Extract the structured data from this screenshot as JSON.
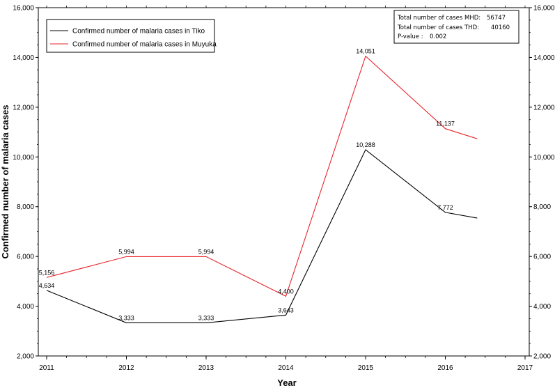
{
  "chart_data": {
    "type": "line",
    "xlabel": "Year",
    "ylabel": "Confirmed number of malaria cases",
    "xlim": [
      2011,
      2017
    ],
    "ylim": [
      2000,
      16000
    ],
    "x_ticks": [
      "2011",
      "2012",
      "2013",
      "2014",
      "2015",
      "2016",
      "2017"
    ],
    "y_ticks": [
      "2,000",
      "4,000",
      "6,000",
      "8,000",
      "10,000",
      "12,000",
      "14,000",
      "16,000"
    ],
    "right_axis_mirrored": true,
    "legend_position": "top-left",
    "series": [
      {
        "name": "Confirmed number of malaria cases in Tiko",
        "color": "#000000",
        "x": [
          2011,
          2012,
          2013,
          2014,
          2015,
          2016,
          2016.4
        ],
        "y": [
          4634,
          3333,
          3333,
          3643,
          10288,
          7772,
          7540
        ],
        "labels": [
          "4,634",
          "3,333",
          "3,333",
          "3,643",
          "10,288",
          "7,772",
          ""
        ]
      },
      {
        "name": "Confirmed number of malaria cases in Muyuka",
        "color": "#e8262d",
        "x": [
          2011,
          2012,
          2013,
          2014,
          2015,
          2016,
          2016.4
        ],
        "y": [
          5156,
          5994,
          5994,
          4400,
          14051,
          11137,
          10730
        ],
        "labels": [
          "5,156",
          "5,994",
          "5,994",
          "4,400",
          "14,051",
          "11,137",
          ""
        ]
      }
    ]
  },
  "stats": {
    "mhd_label": "Total  number of cases MHD:",
    "mhd_value": "56747",
    "thd_label": "Total  number of cases THD:",
    "thd_value": "40160",
    "pvalue_label": "P-value :",
    "pvalue_value": "0.002",
    "mhd_color": "#e8262d"
  }
}
